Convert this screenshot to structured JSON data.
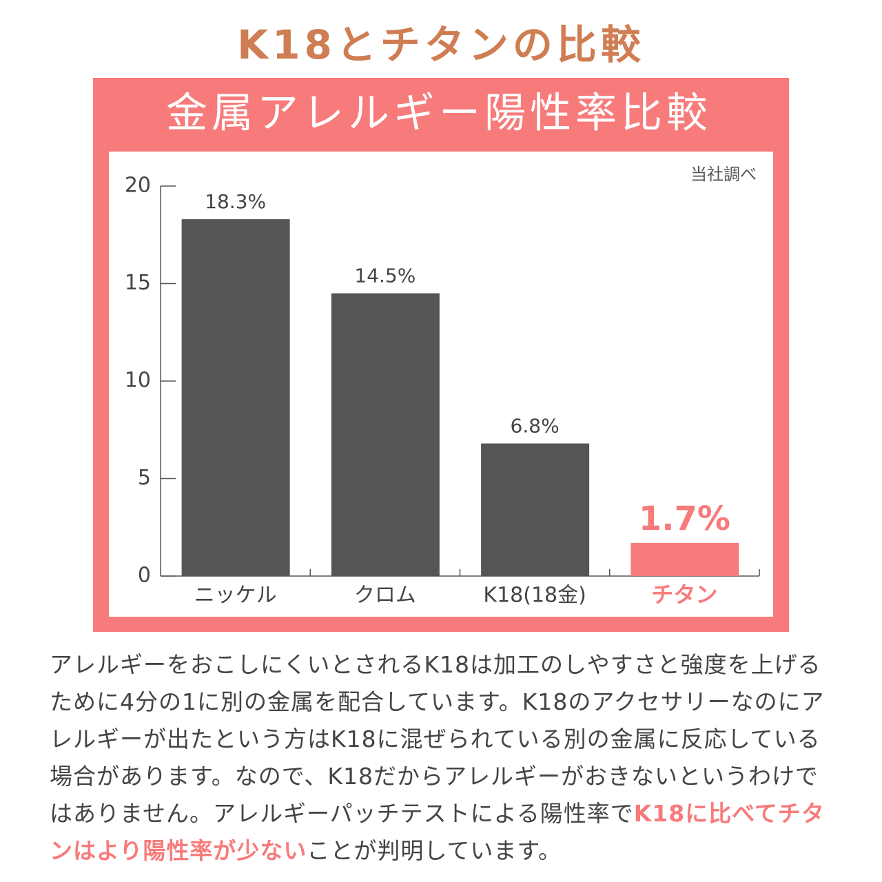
{
  "heading": "K18とチタンの比較",
  "chart_data": {
    "type": "bar",
    "title": "金属アレルギー陽性率比較",
    "note": "当社調べ",
    "categories": [
      "ニッケル",
      "クロム",
      "K18(18金)",
      "チタン"
    ],
    "values": [
      18.3,
      14.5,
      6.8,
      1.7
    ],
    "value_labels": [
      "18.3%",
      "14.5%",
      "6.8%",
      "1.7%"
    ],
    "colors": [
      "#555555",
      "#555555",
      "#555555",
      "#f77b7b"
    ],
    "ylim": [
      0,
      20
    ],
    "yticks": [
      0,
      5,
      10,
      15,
      20
    ],
    "grid": false
  },
  "paragraph": [
    {
      "text": "アレルギーをおこしにくいとされるK18は加工のしやすさと強度を上げるために4分の1に別の金属を配合しています。K18のアクセサリーなのにアレルギーが出たという方はK18に混ぜられている別の金属に反応している場合があります。なので、K18だからアレルギーがおきないというわけではありません。アレルギーパッチテストによる陽性率で",
      "emphasis": false
    },
    {
      "text": "K18に比べてチタンはより陽性率が少ない",
      "emphasis": true
    },
    {
      "text": "ことが判明しています。",
      "emphasis": false
    }
  ]
}
